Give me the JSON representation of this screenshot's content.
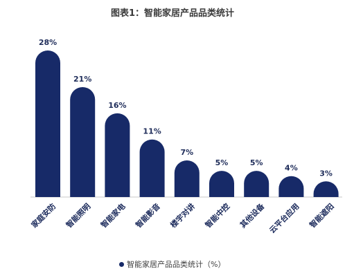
{
  "colors": {
    "bar": "#172a68",
    "legend_swatch": "#172a68",
    "baseline": "#c8c8c8"
  },
  "chart_data": {
    "type": "bar",
    "title": "图表1：智能家居产品品类统计",
    "categories": [
      "家庭安防",
      "智能照明",
      "智能家电",
      "智能影音",
      "楼宇对讲",
      "智能中控",
      "其他设备",
      "云平台应用",
      "智能遮阳"
    ],
    "data_labels": [
      "28%",
      "21%",
      "16%",
      "11%",
      "7%",
      "5%",
      "5%",
      "4%",
      "3%"
    ],
    "series": [
      {
        "name": "智能家居产品品类统计（%）",
        "values": [
          28,
          21,
          16,
          11,
          7,
          5,
          5,
          4,
          3
        ]
      }
    ],
    "ylim": [
      0,
      30
    ],
    "grid": false,
    "legend_position": "bottom"
  }
}
